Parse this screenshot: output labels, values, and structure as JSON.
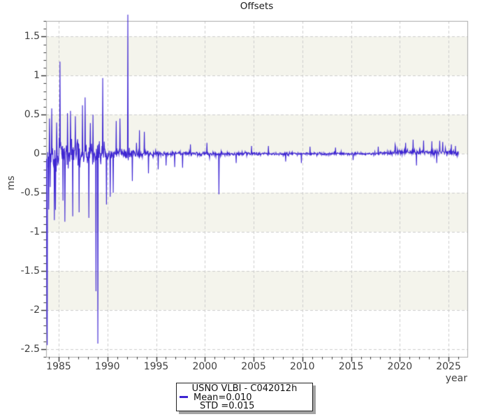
{
  "chart_data": {
    "type": "line",
    "title": "Offsets",
    "xlabel": "year",
    "ylabel": "ms",
    "xlim": [
      1983.71,
      2026.93
    ],
    "ylim": [
      -2.6,
      1.7
    ],
    "xticks": {
      "values": [
        1985,
        1990,
        1995,
        2000,
        2005,
        2010,
        2015,
        2020,
        2025
      ],
      "labels": [
        "1985",
        "1990",
        "1995",
        "2000",
        "2005",
        "2010",
        "2015",
        "2020",
        "2025"
      ]
    },
    "yticks": {
      "values": [
        1.5,
        1.0,
        0.5,
        0,
        -0.5,
        -1.0,
        -1.5,
        -2.0,
        -2.5
      ],
      "labels": [
        "1.5",
        "1",
        "0.5",
        "0",
        "-0.5",
        "-1",
        "-1.5",
        "-2",
        "-2.5"
      ]
    },
    "minor_x_step": 1,
    "minor_y_step": 0.1,
    "grid": {
      "on": true,
      "color": "#cccccc",
      "dash": [
        4,
        3
      ]
    },
    "bands": {
      "color": "#f4f4ec",
      "pairs": [
        [
          1.5,
          1.0
        ],
        [
          0.5,
          0.0
        ],
        [
          -0.5,
          -1.0
        ],
        [
          -1.5,
          -2.0
        ]
      ]
    },
    "frame_color": "#a9a9a9",
    "tick_color": "#222222",
    "legend": {
      "position": "bottom-center",
      "title": "USNO VLBI - C042012h",
      "mean_label": "Mean=0.010",
      "std_label": "STD =0.015"
    },
    "series": [
      {
        "name": "USNO VLBI - C042012h",
        "color": "#3e26d2",
        "mean": 0.01,
        "std": 0.015,
        "x_start": 1983.75,
        "x_end": 2026.0,
        "samples_per_year": 26,
        "seed": 77,
        "spike_prob": 0.035,
        "envelope": [
          [
            1983.75,
            0.33
          ],
          [
            1984.5,
            0.35
          ],
          [
            1985.5,
            0.34
          ],
          [
            1986.5,
            0.3
          ],
          [
            1987.5,
            0.26
          ],
          [
            1988.5,
            0.22
          ],
          [
            1989.5,
            0.2
          ],
          [
            1990.5,
            0.14
          ],
          [
            1991.5,
            0.11
          ],
          [
            1992.5,
            0.1
          ],
          [
            1993.5,
            0.085
          ],
          [
            1994.5,
            0.065
          ],
          [
            1995.5,
            0.055
          ],
          [
            1997.0,
            0.05
          ],
          [
            2000.0,
            0.045
          ],
          [
            2003.0,
            0.04
          ],
          [
            2007.0,
            0.034
          ],
          [
            2012.0,
            0.03
          ],
          [
            2016.0,
            0.026
          ],
          [
            2018.0,
            0.032
          ],
          [
            2020.0,
            0.05
          ],
          [
            2021.5,
            0.06
          ],
          [
            2023.0,
            0.055
          ],
          [
            2025.0,
            0.05
          ],
          [
            2026.0,
            0.045
          ]
        ],
        "bias": [
          [
            1983.75,
            0.0
          ],
          [
            2017.0,
            0.0
          ],
          [
            2019.0,
            0.012
          ],
          [
            2021.0,
            0.02
          ],
          [
            2026.0,
            0.015
          ]
        ],
        "spikes": [
          [
            1983.79,
            -2.12
          ],
          [
            1983.83,
            -2.45
          ],
          [
            1984.05,
            0.45
          ],
          [
            1984.3,
            0.58
          ],
          [
            1984.55,
            -0.85
          ],
          [
            1984.8,
            0.4
          ],
          [
            1985.15,
            1.18
          ],
          [
            1985.45,
            -0.6
          ],
          [
            1985.65,
            -0.87
          ],
          [
            1985.9,
            0.52
          ],
          [
            1986.2,
            0.55
          ],
          [
            1986.45,
            -0.8
          ],
          [
            1986.7,
            0.48
          ],
          [
            1987.1,
            -0.75
          ],
          [
            1987.45,
            0.62
          ],
          [
            1987.7,
            0.72
          ],
          [
            1988.1,
            -0.82
          ],
          [
            1988.5,
            0.5
          ],
          [
            1988.82,
            -1.76
          ],
          [
            1989.0,
            -2.43
          ],
          [
            1989.5,
            0.97
          ],
          [
            1989.9,
            -0.65
          ],
          [
            1990.3,
            -0.55
          ],
          [
            1990.6,
            -0.5
          ],
          [
            1990.9,
            0.42
          ],
          [
            1991.3,
            0.45
          ],
          [
            1992.1,
            1.78
          ],
          [
            1992.55,
            -0.35
          ],
          [
            1993.3,
            0.3
          ],
          [
            1993.8,
            0.28
          ],
          [
            1994.2,
            -0.25
          ],
          [
            1995.2,
            -0.2
          ],
          [
            1996.0,
            -0.15
          ],
          [
            1996.9,
            -0.17
          ],
          [
            1997.7,
            -0.18
          ],
          [
            1998.5,
            0.12
          ],
          [
            2000.2,
            0.14
          ],
          [
            2001.45,
            -0.52
          ],
          [
            2003.2,
            -0.12
          ],
          [
            2004.8,
            0.1
          ],
          [
            2006.5,
            0.1
          ],
          [
            2008.3,
            -0.1
          ],
          [
            2009.9,
            -0.12
          ],
          [
            2010.8,
            0.09
          ],
          [
            2013.4,
            0.08
          ],
          [
            2015.2,
            -0.08
          ],
          [
            2017.8,
            0.09
          ],
          [
            2019.5,
            0.12
          ],
          [
            2020.6,
            0.14
          ],
          [
            2021.35,
            0.18
          ],
          [
            2021.7,
            -0.15
          ],
          [
            2022.45,
            0.17
          ],
          [
            2023.3,
            0.16
          ],
          [
            2023.8,
            -0.12
          ],
          [
            2024.4,
            0.15
          ],
          [
            2025.3,
            0.12
          ],
          [
            2025.7,
            0.1
          ]
        ]
      }
    ]
  }
}
